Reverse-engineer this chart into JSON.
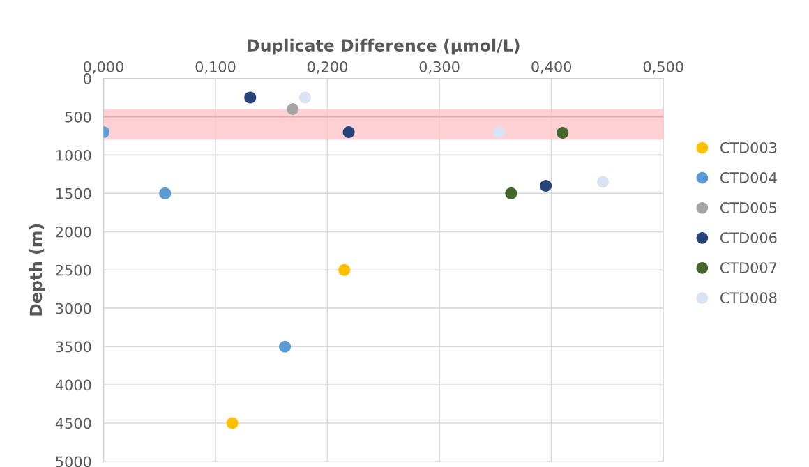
{
  "chart_data": {
    "type": "scatter",
    "xlabel": "Duplicate Difference (µmol/L)",
    "ylabel": "Depth (m)",
    "xlim": [
      0,
      0.5
    ],
    "xticks": [
      {
        "value": 0,
        "label": "0,000"
      },
      {
        "value": 0.1,
        "label": "0,100"
      },
      {
        "value": 0.2,
        "label": "0,200"
      },
      {
        "value": 0.3,
        "label": "0,300"
      },
      {
        "value": 0.4,
        "label": "0,400"
      },
      {
        "value": 0.5,
        "label": "0,500"
      }
    ],
    "ylim": [
      5000,
      0
    ],
    "yticks": [
      0,
      500,
      1000,
      1500,
      2000,
      2500,
      3000,
      3500,
      4000,
      4500,
      5000
    ],
    "grid": true,
    "legend": "right",
    "marker": "circle",
    "bands": [
      {
        "axis": "y",
        "from": 400,
        "to": 800,
        "color": "#ffc0c6"
      }
    ],
    "ref_lines": [
      {
        "axis": "y",
        "value": 500,
        "color": "#e8a8ae"
      }
    ],
    "series": [
      {
        "name": "CTD003",
        "color": "#ffc000",
        "x": [
          0.215,
          0.115
        ],
        "values": [
          2500,
          4500
        ]
      },
      {
        "name": "CTD004",
        "color": "#5b9bd5",
        "x": [
          0.0,
          0.055,
          0.162
        ],
        "values": [
          700,
          1500,
          3500
        ]
      },
      {
        "name": "CTD005",
        "color": "#a5a5a5",
        "x": [
          0.169
        ],
        "values": [
          400
        ]
      },
      {
        "name": "CTD006",
        "color": "#264478",
        "x": [
          0.131,
          0.219,
          0.395
        ],
        "values": [
          250,
          700,
          1400
        ]
      },
      {
        "name": "CTD007",
        "color": "#43682b",
        "x": [
          0.364,
          0.41
        ],
        "values": [
          1500,
          710
        ]
      },
      {
        "name": "CTD008",
        "color": "#dae3f3",
        "x": [
          0.18,
          0.353,
          0.446
        ],
        "values": [
          250,
          700,
          1350
        ]
      }
    ]
  }
}
